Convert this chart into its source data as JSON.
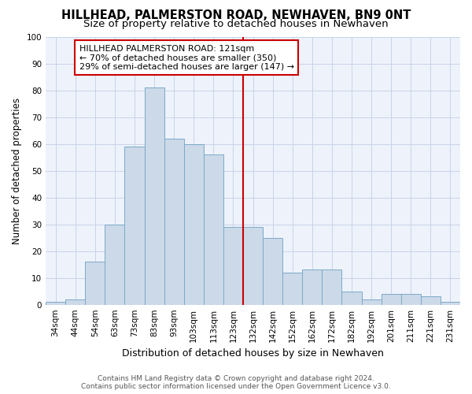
{
  "title": "HILLHEAD, PALMERSTON ROAD, NEWHAVEN, BN9 0NT",
  "subtitle": "Size of property relative to detached houses in Newhaven",
  "xlabel": "Distribution of detached houses by size in Newhaven",
  "ylabel": "Number of detached properties",
  "categories": [
    "34sqm",
    "44sqm",
    "54sqm",
    "63sqm",
    "73sqm",
    "83sqm",
    "93sqm",
    "103sqm",
    "113sqm",
    "123sqm",
    "132sqm",
    "142sqm",
    "152sqm",
    "162sqm",
    "172sqm",
    "182sqm",
    "192sqm",
    "201sqm",
    "211sqm",
    "221sqm",
    "231sqm"
  ],
  "values": [
    1,
    2,
    16,
    30,
    59,
    81,
    62,
    60,
    56,
    29,
    29,
    25,
    12,
    13,
    13,
    5,
    2,
    4,
    4,
    3,
    1
  ],
  "bar_color": "#ccd9e8",
  "bar_edge_color": "#7aaac8",
  "vline_x": 9.5,
  "vline_color": "#cc0000",
  "annotation_text": "HILLHEAD PALMERSTON ROAD: 121sqm\n← 70% of detached houses are smaller (350)\n29% of semi-detached houses are larger (147) →",
  "annotation_box_facecolor": "#ffffff",
  "annotation_box_edgecolor": "#cc0000",
  "ylim": [
    0,
    100
  ],
  "yticks": [
    0,
    10,
    20,
    30,
    40,
    50,
    60,
    70,
    80,
    90,
    100
  ],
  "grid_color": "#c8d4e8",
  "background_color": "#eef2fb",
  "footer_text": "Contains HM Land Registry data © Crown copyright and database right 2024.\nContains public sector information licensed under the Open Government Licence v3.0.",
  "title_fontsize": 10.5,
  "subtitle_fontsize": 9.5,
  "xlabel_fontsize": 9,
  "ylabel_fontsize": 8.5,
  "tick_fontsize": 7.5,
  "annotation_fontsize": 8,
  "footer_fontsize": 6.5
}
